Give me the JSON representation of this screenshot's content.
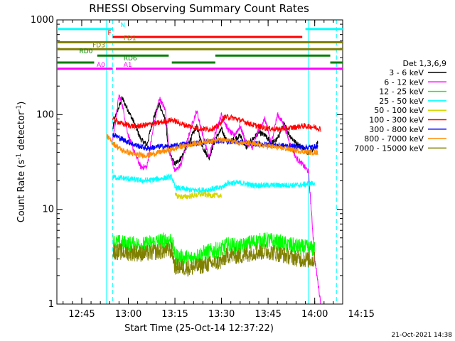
{
  "chart_data": {
    "type": "line",
    "title": "RHESSI Observing Summary Count Rates",
    "xlabel": "Start Time (25-Oct-14 12:37:22)",
    "ylabel_main": "Count Rate (s",
    "ylabel_sup1": "-1",
    "ylabel_mid": " detector",
    "ylabel_sup2": "-1",
    "ylabel_end": ")",
    "y_log": true,
    "ylim": [
      1,
      1000
    ],
    "xlim_min": [
      37,
      129
    ],
    "y_ticks": [
      {
        "v": 1,
        "label": "1"
      },
      {
        "v": 10,
        "label": "10"
      },
      {
        "v": 100,
        "label": "100"
      },
      {
        "v": 1000,
        "label": "1000"
      }
    ],
    "x_ticks": [
      {
        "m": 45,
        "label": "12:45"
      },
      {
        "m": 60,
        "label": "13:00"
      },
      {
        "m": 75,
        "label": "13:15"
      },
      {
        "m": 90,
        "label": "13:30"
      },
      {
        "m": 105,
        "label": "13:45"
      },
      {
        "m": 120,
        "label": "14:00"
      },
      {
        "m": 135,
        "label": "14:15"
      }
    ],
    "legend_title": "Det 1,3,6,9",
    "series": [
      {
        "name": "3 - 6 keV",
        "color": "#000000",
        "t": [
          55,
          56,
          57,
          58,
          60,
          62,
          64,
          66,
          68,
          70,
          72,
          73,
          75,
          77,
          80,
          82,
          84,
          86,
          88,
          90,
          92,
          94,
          96,
          98,
          100,
          102,
          104,
          106,
          108,
          110,
          112,
          114,
          116,
          118,
          120,
          121
        ],
        "v": [
          70,
          100,
          120,
          150,
          110,
          80,
          55,
          48,
          90,
          130,
          85,
          40,
          30,
          35,
          55,
          75,
          45,
          35,
          55,
          70,
          50,
          55,
          60,
          45,
          55,
          65,
          60,
          50,
          55,
          80,
          60,
          50,
          45,
          40,
          45,
          50
        ]
      },
      {
        "name": "6 - 12 keV",
        "color": "#ff00ff",
        "t": [
          55,
          56,
          57,
          58,
          60,
          62,
          64,
          66,
          68,
          70,
          72,
          73,
          75,
          77,
          80,
          82,
          84,
          86,
          88,
          90,
          92,
          94,
          96,
          98,
          100,
          102,
          104,
          106,
          108,
          110,
          112,
          114,
          116,
          118,
          120,
          122
        ],
        "v": [
          55,
          90,
          160,
          130,
          60,
          40,
          28,
          28,
          70,
          150,
          110,
          45,
          25,
          30,
          70,
          110,
          60,
          35,
          65,
          100,
          70,
          60,
          75,
          50,
          45,
          70,
          90,
          50,
          100,
          80,
          50,
          35,
          30,
          25,
          3,
          1
        ]
      },
      {
        "name": "12 - 25 keV",
        "color": "#00ff00",
        "t": [
          55,
          60,
          65,
          70,
          74,
          75,
          80,
          85,
          90,
          92,
          96,
          100,
          105,
          110,
          115,
          120
        ],
        "v": [
          4.5,
          4.3,
          4.2,
          4.6,
          4.8,
          3.2,
          3.0,
          3.5,
          3.8,
          4.2,
          4.0,
          4.5,
          4.7,
          4.3,
          4.0,
          3.8
        ]
      },
      {
        "name": "25 - 50 keV",
        "color": "#00ffff",
        "t": [
          55,
          60,
          65,
          70,
          74,
          75,
          80,
          85,
          90,
          92,
          96,
          100,
          105,
          110,
          115,
          120
        ],
        "v": [
          22,
          21,
          20,
          21,
          22,
          17,
          16,
          16,
          17,
          19,
          19,
          18,
          18,
          18,
          18,
          19
        ]
      },
      {
        "name": "50 - 100 keV",
        "color": "#d6d600",
        "t": [
          75,
          78,
          81,
          84,
          87,
          90
        ],
        "v": [
          14,
          13.5,
          14,
          14.5,
          14,
          14
        ]
      },
      {
        "name": "100 - 300 keV",
        "color": "#ff0000",
        "t": [
          55,
          58,
          62,
          66,
          70,
          74,
          78,
          82,
          86,
          89,
          91,
          94,
          97,
          100,
          104,
          108,
          112,
          116,
          120,
          122
        ],
        "v": [
          90,
          80,
          75,
          78,
          82,
          88,
          78,
          72,
          70,
          75,
          95,
          92,
          85,
          78,
          72,
          70,
          72,
          76,
          74,
          70
        ]
      },
      {
        "name": "300 - 800 keV",
        "color": "#0000ff",
        "t": [
          55,
          58,
          62,
          66,
          70,
          74,
          78,
          82,
          86,
          90,
          94,
          98,
          102,
          106,
          110,
          114,
          118,
          121
        ],
        "v": [
          62,
          55,
          48,
          44,
          46,
          46,
          49,
          50,
          52,
          53,
          52,
          50,
          49,
          48,
          47,
          46,
          45,
          46
        ]
      },
      {
        "name": "800 - 7000 keV",
        "color": "#ff8c00",
        "t": [
          53,
          55,
          58,
          62,
          66,
          70,
          74,
          78,
          82,
          86,
          90,
          94,
          98,
          102,
          106,
          110,
          114,
          118,
          121
        ],
        "v": [
          60,
          50,
          42,
          38,
          37,
          40,
          43,
          47,
          50,
          53,
          54,
          52,
          50,
          48,
          46,
          44,
          42,
          40,
          40
        ]
      },
      {
        "name": "7000 - 15000 keV",
        "color": "#808000",
        "t": [
          55,
          60,
          65,
          70,
          74,
          75,
          80,
          85,
          90,
          92,
          96,
          100,
          105,
          110,
          115,
          120
        ],
        "v": [
          3.6,
          3.5,
          3.4,
          3.6,
          3.7,
          2.5,
          2.4,
          2.6,
          2.8,
          3.3,
          3.2,
          3.5,
          3.6,
          3.3,
          3.0,
          2.9
        ]
      }
    ],
    "flags": [
      {
        "label": "N",
        "color": "#00ffff",
        "v": 800,
        "label_side": "right",
        "label_at": 57,
        "segments": [
          [
            37,
            55
          ],
          [
            117,
            129
          ]
        ]
      },
      {
        "label": "F",
        "color": "#ff0000",
        "v": 660,
        "label_side": "left",
        "label_at": 55,
        "segments": [
          [
            55,
            116
          ]
        ]
      },
      {
        "label": "FD1",
        "color": "#808000",
        "v": 580,
        "label_side": "right",
        "label_at": 58,
        "segments": [
          [
            37,
            129
          ]
        ]
      },
      {
        "label": "FD3",
        "color": "#808000",
        "v": 490,
        "label_side": "left",
        "label_at": 53,
        "segments": [
          [
            37,
            129
          ]
        ]
      },
      {
        "label": "RD0",
        "color": "#008000",
        "v": 420,
        "label_side": "left",
        "label_at": 49,
        "segments": [
          [
            50,
            73
          ],
          [
            88,
            125
          ]
        ]
      },
      {
        "label": "RD6",
        "color": "#008000",
        "v": 355,
        "label_side": "right",
        "label_at": 58,
        "segments": [
          [
            37,
            49
          ],
          [
            74,
            88
          ],
          [
            125,
            129
          ]
        ]
      },
      {
        "label": "A0",
        "color": "#ff00ff",
        "v": 305,
        "label_side": "left",
        "label_at": 53,
        "segments": [
          [
            37,
            55
          ]
        ]
      },
      {
        "label": "A1",
        "color": "#ff00ff",
        "v": 305,
        "label_side": "right",
        "label_at": 58,
        "segments": [
          [
            56,
            129
          ]
        ]
      }
    ],
    "vlines": [
      {
        "m": 53,
        "color": "#00ffff",
        "style": "solid"
      },
      {
        "m": 118,
        "color": "#00ffff",
        "style": "solid"
      },
      {
        "m": 55,
        "color": "#00ffff",
        "style": "dashed"
      },
      {
        "m": 127,
        "color": "#00ffff",
        "style": "dashed"
      }
    ]
  },
  "footer_stamp": "21-Oct-2021 14:38"
}
